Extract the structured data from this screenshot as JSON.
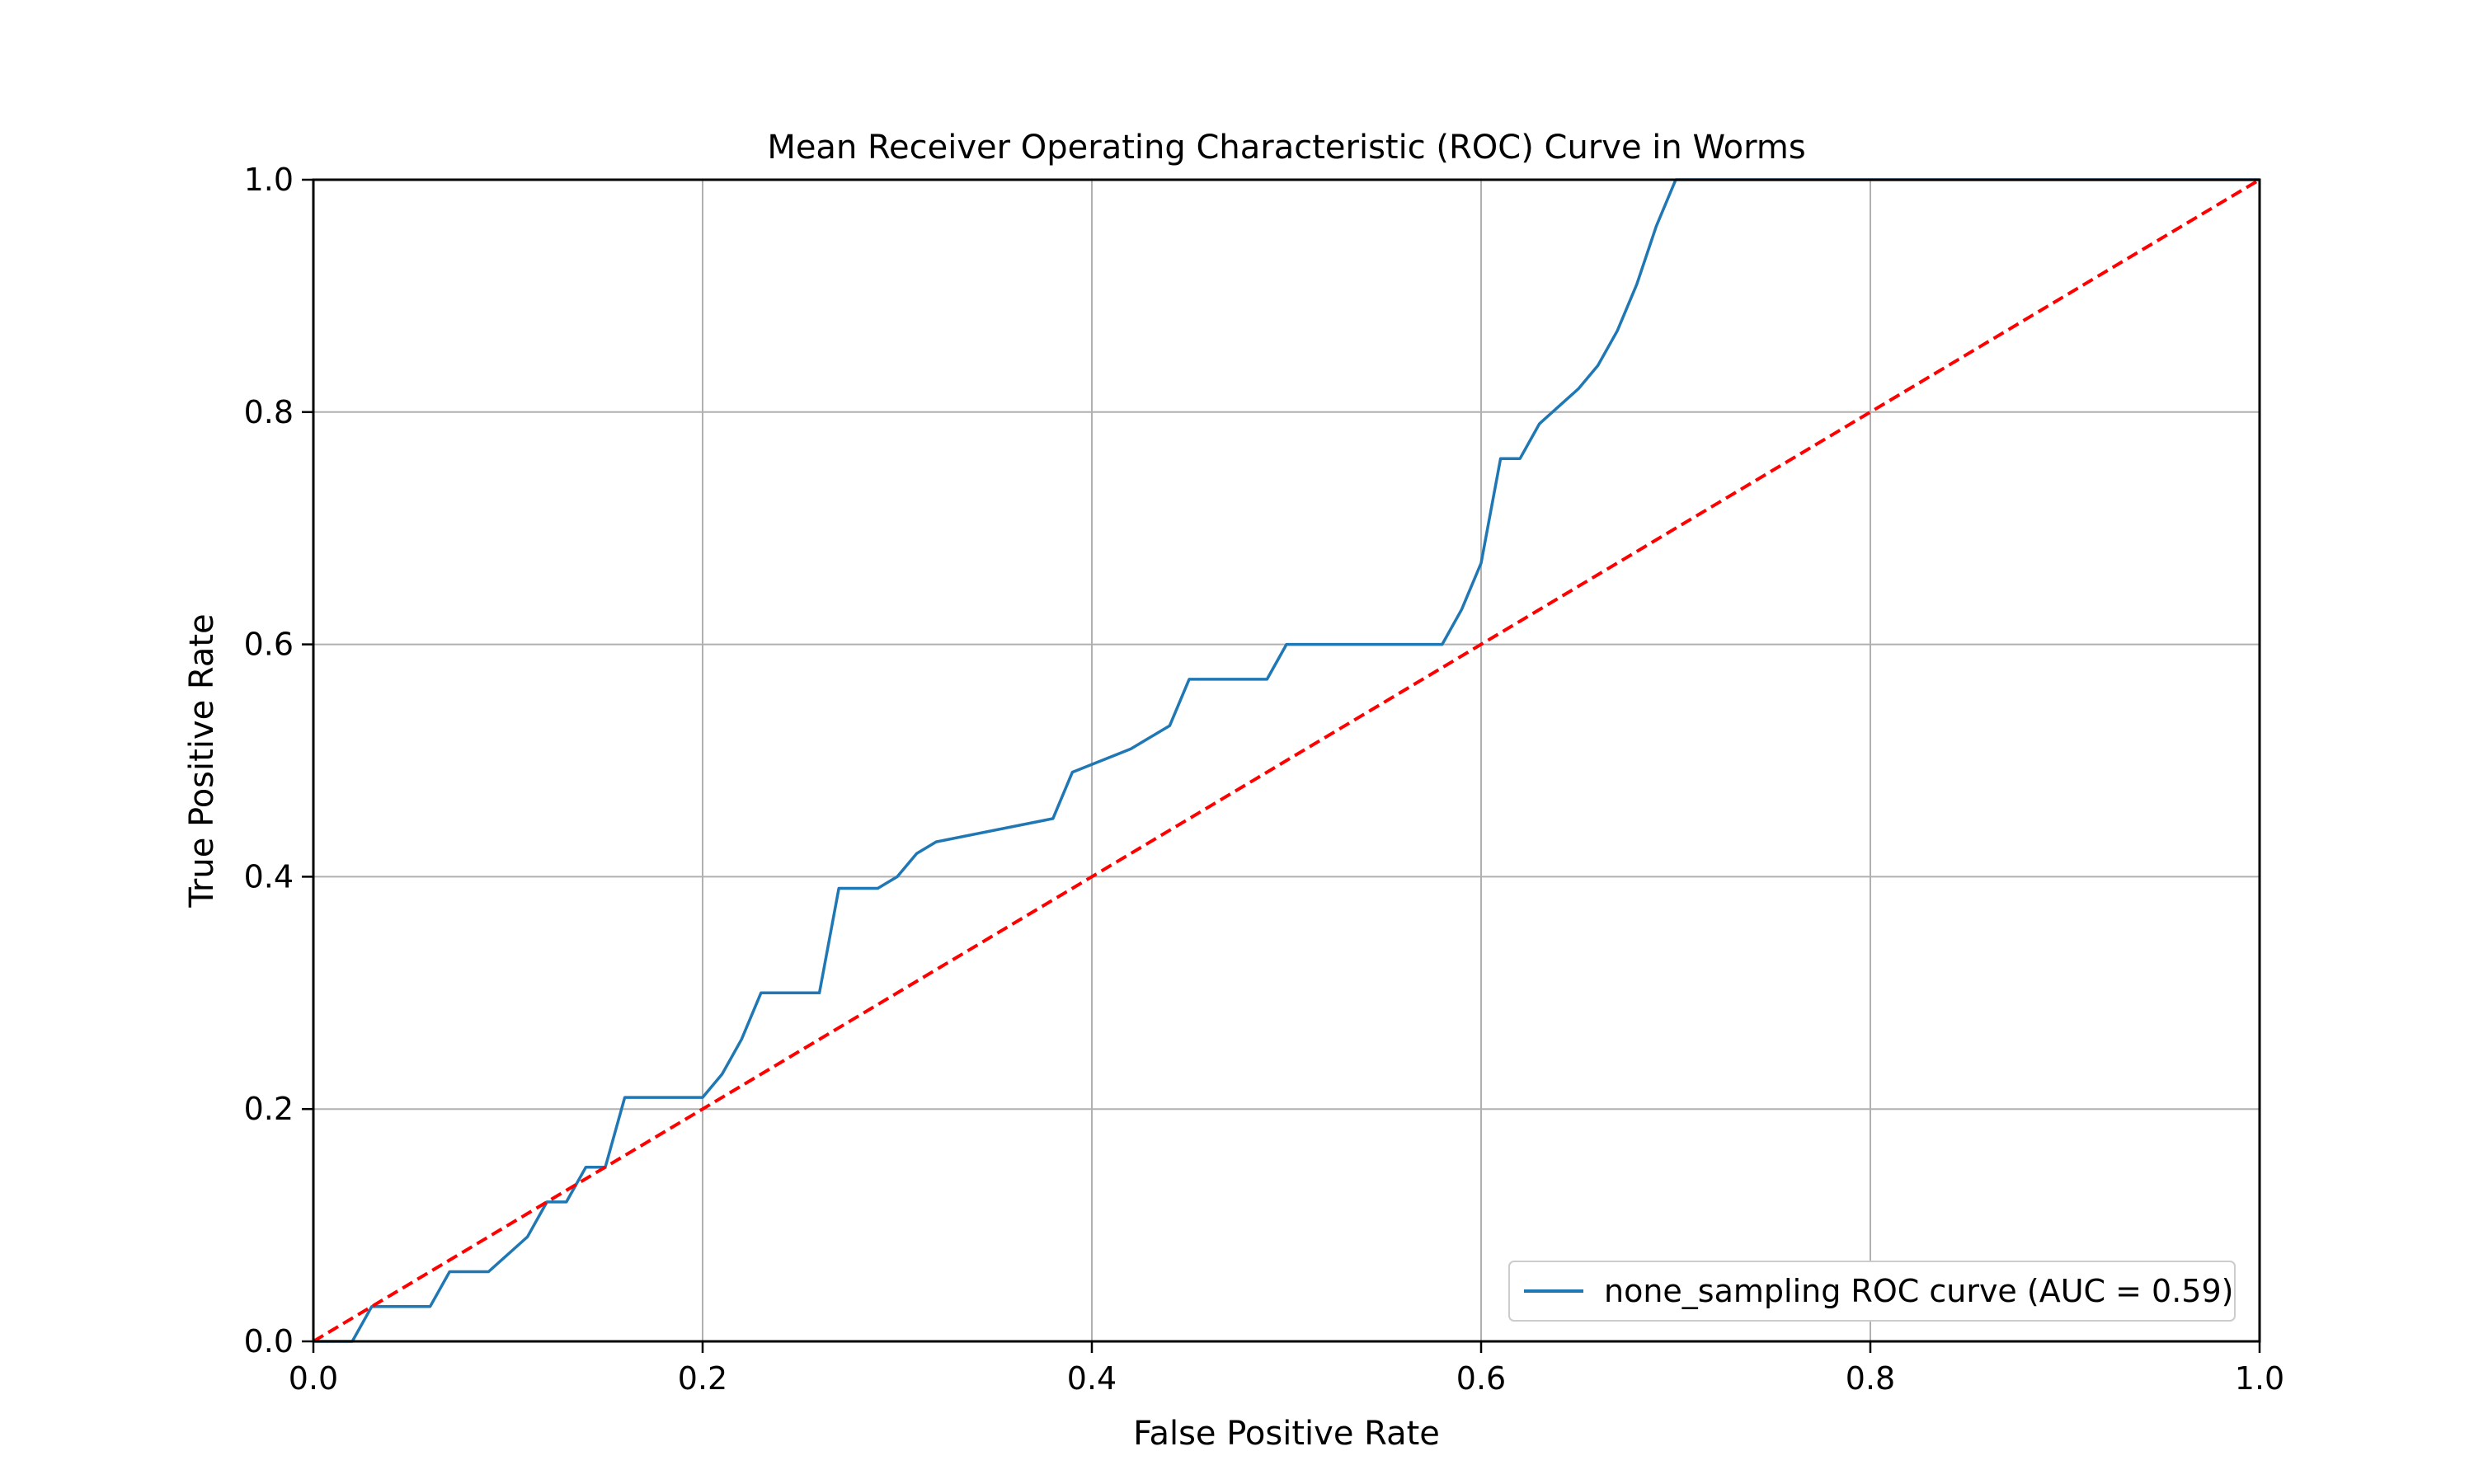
{
  "chart_data": {
    "type": "line",
    "title": "Mean Receiver Operating Characteristic (ROC) Curve in Worms",
    "xlabel": "False Positive Rate",
    "ylabel": "True Positive Rate",
    "xlim": [
      0.0,
      1.0
    ],
    "ylim": [
      0.0,
      1.0
    ],
    "xticks": [
      "0.0",
      "0.2",
      "0.4",
      "0.6",
      "0.8",
      "1.0"
    ],
    "yticks": [
      "0.0",
      "0.2",
      "0.4",
      "0.6",
      "0.8",
      "1.0"
    ],
    "grid": true,
    "legend_position": "lower-right",
    "series": [
      {
        "name": "none_sampling ROC curve (AUC = 0.59)",
        "color": "#1f77b4",
        "style": "solid",
        "x": [
          0.0,
          0.02,
          0.03,
          0.06,
          0.07,
          0.09,
          0.11,
          0.12,
          0.13,
          0.14,
          0.15,
          0.16,
          0.2,
          0.21,
          0.22,
          0.23,
          0.26,
          0.27,
          0.29,
          0.3,
          0.31,
          0.32,
          0.38,
          0.39,
          0.42,
          0.43,
          0.44,
          0.45,
          0.49,
          0.5,
          0.58,
          0.59,
          0.6,
          0.61,
          0.62,
          0.63,
          0.65,
          0.66,
          0.67,
          0.68,
          0.69,
          0.7,
          0.71,
          1.0
        ],
        "y": [
          0.0,
          0.0,
          0.03,
          0.03,
          0.06,
          0.06,
          0.09,
          0.12,
          0.12,
          0.15,
          0.15,
          0.21,
          0.21,
          0.23,
          0.26,
          0.3,
          0.3,
          0.39,
          0.39,
          0.4,
          0.42,
          0.43,
          0.45,
          0.49,
          0.51,
          0.52,
          0.53,
          0.57,
          0.57,
          0.6,
          0.6,
          0.63,
          0.67,
          0.76,
          0.76,
          0.79,
          0.82,
          0.84,
          0.87,
          0.91,
          0.96,
          1.0,
          1.0,
          1.0
        ]
      },
      {
        "name": "",
        "color": "#ff0000",
        "style": "dashed",
        "x": [
          0.0,
          1.0
        ],
        "y": [
          0.0,
          1.0
        ]
      }
    ]
  }
}
